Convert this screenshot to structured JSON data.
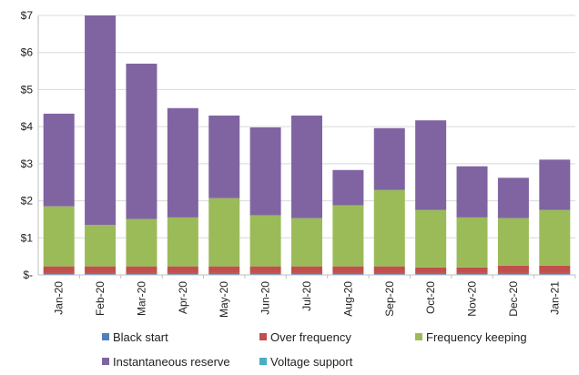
{
  "chart_data": {
    "type": "bar",
    "stacked": true,
    "categories": [
      "Jan-20",
      "Feb-20",
      "Mar-20",
      "Apr-20",
      "May-20",
      "Jun-20",
      "Jul-20",
      "Aug-20",
      "Sep-20",
      "Oct-20",
      "Nov-20",
      "Dec-20",
      "Jan-21"
    ],
    "ylim": [
      0,
      7
    ],
    "yticks": [
      {
        "value": 0,
        "label": "$-"
      },
      {
        "value": 1,
        "label": "$1"
      },
      {
        "value": 2,
        "label": "$2"
      },
      {
        "value": 3,
        "label": "$3"
      },
      {
        "value": 4,
        "label": "$4"
      },
      {
        "value": 5,
        "label": "$5"
      },
      {
        "value": 6,
        "label": "$6"
      },
      {
        "value": 7,
        "label": "$7"
      }
    ],
    "grid": true,
    "legend_position": "bottom",
    "series": [
      {
        "name": "Black start",
        "color": "#4f81bd",
        "values": [
          0.05,
          0.05,
          0.05,
          0.05,
          0.05,
          0.05,
          0.05,
          0.05,
          0.05,
          0.05,
          0.05,
          0.05,
          0.05
        ]
      },
      {
        "name": "Over frequency",
        "color": "#c0504d",
        "values": [
          0.18,
          0.18,
          0.18,
          0.18,
          0.18,
          0.18,
          0.18,
          0.18,
          0.18,
          0.15,
          0.15,
          0.2,
          0.2
        ]
      },
      {
        "name": "Frequency keeping",
        "color": "#9bbb59",
        "values": [
          1.62,
          1.12,
          1.28,
          1.32,
          1.84,
          1.38,
          1.3,
          1.65,
          2.06,
          1.55,
          1.35,
          1.28,
          1.5
        ]
      },
      {
        "name": "Instantaneous reserve",
        "color": "#8064a2",
        "values": [
          2.5,
          5.65,
          4.19,
          2.95,
          2.23,
          2.37,
          2.77,
          0.95,
          1.67,
          2.42,
          1.38,
          1.09,
          1.36
        ]
      },
      {
        "name": "Voltage support",
        "color": "#4bacc6",
        "values": [
          0,
          0,
          0,
          0,
          0,
          0,
          0,
          0,
          0,
          0,
          0,
          0,
          0
        ]
      }
    ]
  }
}
